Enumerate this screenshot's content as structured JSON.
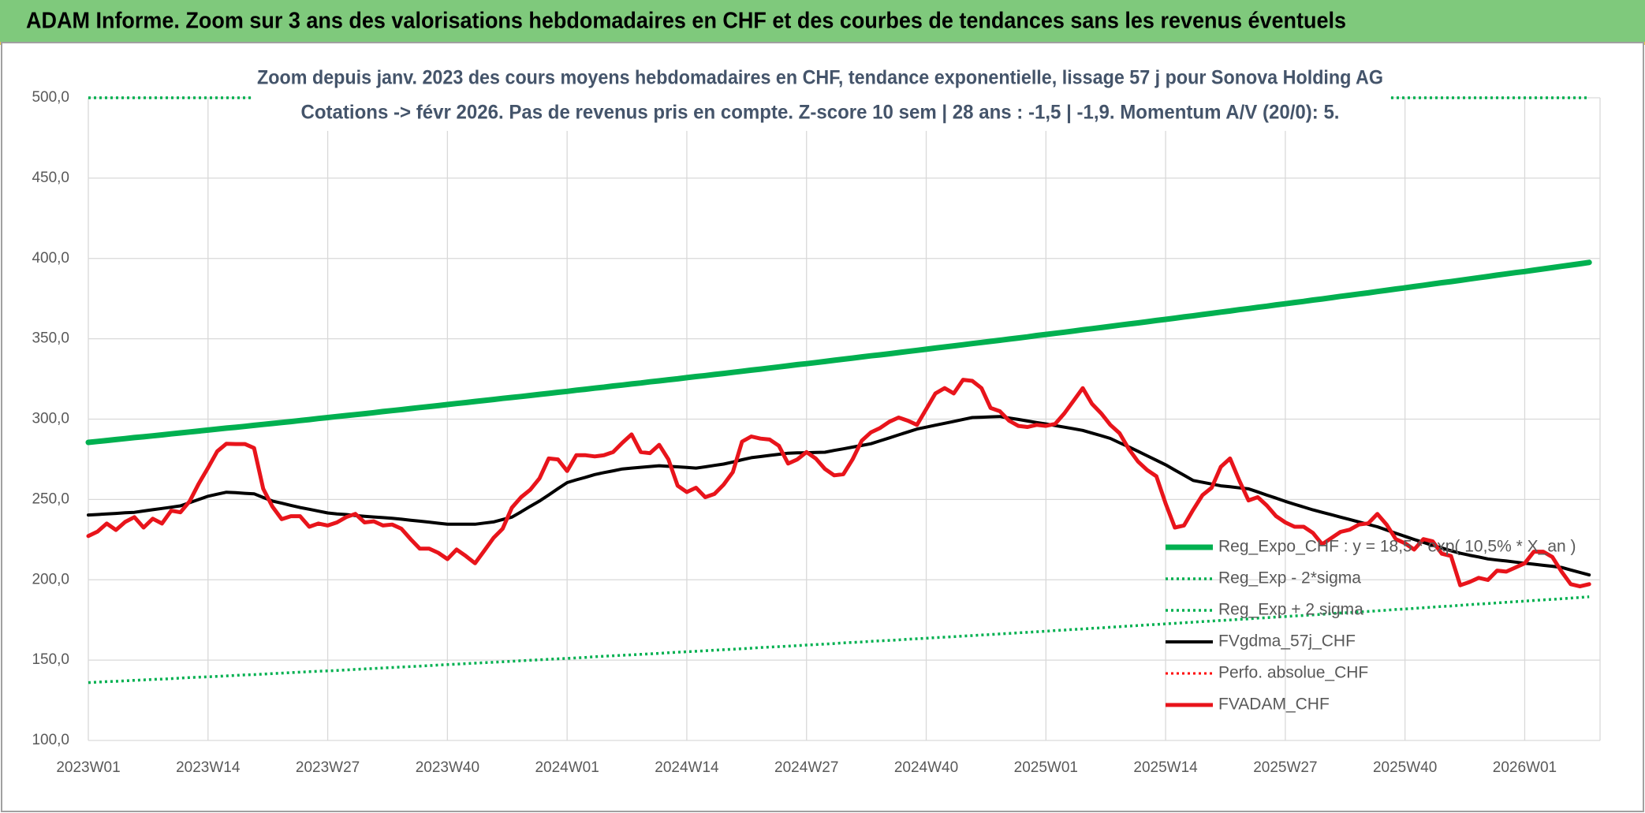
{
  "header": {
    "title": "ADAM Informe. Zoom sur 3 ans des valorisations hebdomadaires en CHF et des courbes de tendances sans les revenus éventuels"
  },
  "chart_data": {
    "type": "line",
    "title": "Zoom depuis janv. 2023 des cours moyens hebdomadaires en CHF, tendance exponentielle, lissage 57 j pour Sonova Holding AG",
    "subtitle": "Cotations -> févr 2026. Pas de revenus pris en compte. Z-score 10 sem | 28 ans : -1,5 | -1,9. Momentum A/V (20/0): 5.",
    "categories": [
      "2023W01",
      null,
      null,
      null,
      null,
      null,
      null,
      null,
      null,
      null,
      null,
      null,
      null,
      "2023W14",
      null,
      null,
      null,
      null,
      null,
      null,
      null,
      null,
      null,
      null,
      null,
      null,
      "2023W27",
      null,
      null,
      null,
      null,
      null,
      null,
      null,
      null,
      null,
      null,
      null,
      null,
      "2023W40",
      null,
      null,
      null,
      null,
      null,
      null,
      null,
      null,
      null,
      null,
      null,
      null,
      "2024W01",
      null,
      null,
      null,
      null,
      null,
      null,
      null,
      null,
      null,
      null,
      null,
      null,
      "2024W14",
      null,
      null,
      null,
      null,
      null,
      null,
      null,
      null,
      null,
      null,
      null,
      null,
      "2024W27",
      null,
      null,
      null,
      null,
      null,
      null,
      null,
      null,
      null,
      null,
      null,
      null,
      "2024W40",
      null,
      null,
      null,
      null,
      null,
      null,
      null,
      null,
      null,
      null,
      null,
      null,
      "2025W01",
      null,
      null,
      null,
      null,
      null,
      null,
      null,
      null,
      null,
      null,
      null,
      null,
      "2025W14",
      null,
      null,
      null,
      null,
      null,
      null,
      null,
      null,
      null,
      null,
      null,
      null,
      "2025W27",
      null,
      null,
      null,
      null,
      null,
      null,
      null,
      null,
      null,
      null,
      null,
      null,
      "2025W40",
      null,
      null,
      null,
      null,
      null,
      null,
      null,
      null,
      null,
      null,
      null,
      null,
      "2026W01",
      null,
      null,
      null,
      null,
      null,
      null,
      null
    ],
    "ylim": [
      100,
      500
    ],
    "yticks": [
      {
        "value": 100,
        "label": "100,0"
      },
      {
        "value": 150,
        "label": "150,0"
      },
      {
        "value": 200,
        "label": "200,0"
      },
      {
        "value": 250,
        "label": "250,0"
      },
      {
        "value": 300,
        "label": "300,0"
      },
      {
        "value": 350,
        "label": "350,0"
      },
      {
        "value": 400,
        "label": "400,0"
      },
      {
        "value": 450,
        "label": "450,0"
      },
      {
        "value": 500,
        "label": "500,0"
      }
    ],
    "grid": true,
    "legend": "right",
    "series": [
      {
        "name": "Reg_Expo_CHF : y = 18,5 * exp( 10,5% * X_an )",
        "color": "#00b050",
        "style": "solid",
        "values": [
          285.5,
          286.1,
          286.7,
          287.3,
          287.9,
          288.5,
          289.0,
          289.6,
          290.2,
          290.8,
          291.4,
          292.0,
          292.6,
          293.2,
          293.8,
          294.4,
          294.9,
          295.5,
          296.1,
          296.7,
          297.3,
          297.9,
          298.5,
          299.1,
          299.7,
          300.4,
          301.0,
          301.6,
          302.2,
          302.8,
          303.4,
          304.0,
          304.7,
          305.3,
          305.9,
          306.6,
          307.2,
          307.8,
          308.4,
          309.1,
          309.7,
          310.3,
          311.0,
          311.6,
          312.2,
          312.9,
          313.5,
          314.1,
          314.7,
          315.4,
          316.0,
          316.7,
          317.3,
          318.0,
          318.6,
          319.3,
          319.9,
          320.6,
          321.2,
          321.9,
          322.5,
          323.2,
          323.8,
          324.5,
          325.1,
          325.8,
          326.5,
          327.1,
          327.8,
          328.4,
          329.1,
          329.8,
          330.5,
          331.1,
          331.8,
          332.5,
          333.2,
          333.9,
          334.5,
          335.2,
          335.9,
          336.6,
          337.3,
          338.0,
          338.7,
          339.4,
          340.0,
          340.7,
          341.4,
          342.1,
          342.8,
          343.5,
          344.2,
          344.9,
          345.6,
          346.3,
          347.0,
          347.7,
          348.4,
          349.1,
          349.8,
          350.5,
          351.2,
          352.0,
          352.7,
          353.4,
          354.1,
          354.8,
          355.6,
          356.3,
          357.0,
          357.7,
          358.5,
          359.2,
          359.9,
          360.6,
          361.4,
          362.1,
          362.8,
          363.6,
          364.3,
          365.1,
          365.8,
          366.6,
          367.3,
          368.1,
          368.8,
          369.6,
          370.3,
          371.1,
          371.8,
          372.6,
          373.3,
          374.1,
          374.8,
          375.6,
          376.4,
          377.1,
          377.9,
          378.6,
          379.4,
          380.2,
          381.0,
          381.7,
          382.5,
          383.3,
          384.1,
          384.9,
          385.6,
          386.4,
          387.2,
          388.0,
          388.8,
          389.6,
          390.4,
          391.2,
          391.9,
          392.7,
          393.5,
          394.3,
          395.1,
          395.9,
          396.7,
          397.5
        ]
      },
      {
        "name": "Reg_Exp - 2*sigma",
        "color": "#00b050",
        "style": "dotted",
        "values": [
          136.0,
          136.3,
          136.6,
          136.8,
          137.1,
          137.4,
          137.7,
          138.0,
          138.2,
          138.5,
          138.8,
          139.1,
          139.4,
          139.6,
          139.9,
          140.2,
          140.5,
          140.8,
          141.0,
          141.3,
          141.6,
          141.9,
          142.2,
          142.5,
          142.8,
          143.1,
          143.3,
          143.6,
          143.9,
          144.2,
          144.5,
          144.8,
          145.1,
          145.4,
          145.7,
          146.0,
          146.3,
          146.6,
          146.9,
          147.2,
          147.5,
          147.8,
          148.1,
          148.4,
          148.7,
          149.0,
          149.3,
          149.6,
          149.9,
          150.2,
          150.5,
          150.8,
          151.1,
          151.4,
          151.7,
          152.1,
          152.4,
          152.7,
          153.0,
          153.3,
          153.6,
          153.9,
          154.2,
          154.6,
          154.9,
          155.2,
          155.5,
          155.8,
          156.2,
          156.5,
          156.8,
          157.1,
          157.4,
          157.8,
          158.1,
          158.4,
          158.7,
          159.0,
          159.4,
          159.7,
          160.0,
          160.3,
          160.7,
          161.0,
          161.3,
          161.7,
          162.0,
          162.3,
          162.6,
          163.0,
          163.3,
          163.6,
          164.0,
          164.3,
          164.6,
          165.0,
          165.3,
          165.6,
          165.9,
          166.3,
          166.6,
          167.0,
          167.3,
          167.7,
          168.0,
          168.4,
          168.7,
          169.1,
          169.4,
          169.8,
          170.1,
          170.5,
          170.8,
          171.2,
          171.5,
          171.9,
          172.2,
          172.6,
          172.9,
          173.3,
          173.6,
          174.0,
          174.3,
          174.7,
          175.0,
          175.4,
          175.7,
          176.1,
          176.4,
          176.8,
          177.1,
          177.5,
          177.8,
          178.2,
          178.5,
          178.9,
          179.3,
          179.6,
          180.0,
          180.3,
          180.7,
          181.1,
          181.5,
          181.8,
          182.2,
          182.6,
          183.0,
          183.4,
          183.7,
          184.1,
          184.5,
          184.9,
          185.2,
          185.6,
          186.0,
          186.4,
          186.7,
          187.1,
          187.5,
          187.8,
          188.2,
          188.6,
          189.0,
          189.4
        ]
      },
      {
        "name": "Reg_Exp + 2 sigma",
        "color": "#00b050",
        "style": "dotted",
        "values": [
          500,
          500,
          500,
          500,
          500,
          500,
          500,
          500,
          500,
          500,
          500,
          500,
          500,
          500,
          500,
          500,
          500,
          500,
          500,
          500,
          500,
          500,
          500,
          500,
          500,
          500,
          500,
          500,
          500,
          500,
          500,
          500,
          500,
          500,
          500,
          500,
          500,
          500,
          500,
          500,
          500,
          500,
          500,
          500,
          500,
          500,
          500,
          500,
          500,
          500,
          500,
          500,
          500,
          500,
          500,
          500,
          500,
          500,
          500,
          500,
          500,
          500,
          500,
          500,
          500,
          500,
          500,
          500,
          500,
          500,
          500,
          500,
          500,
          500,
          500,
          500,
          500,
          500,
          500,
          500,
          500,
          500,
          500,
          500,
          500,
          500,
          500,
          500,
          500,
          500,
          500,
          500,
          500,
          500,
          500,
          500,
          500,
          500,
          500,
          500,
          500,
          500,
          500,
          500,
          500,
          500,
          500,
          500,
          500,
          500,
          500,
          500,
          500,
          500,
          500,
          500,
          500,
          500,
          500,
          500,
          500,
          500,
          500,
          500,
          500,
          500,
          500,
          500,
          500,
          500,
          500,
          500,
          500,
          500,
          500,
          500,
          500,
          500,
          500,
          500,
          500,
          500,
          500,
          500,
          500,
          500,
          500,
          500,
          500,
          500,
          500,
          500,
          500,
          500,
          500,
          500,
          500,
          500,
          500,
          500,
          500,
          500,
          500,
          500
        ]
      },
      {
        "name": "FVgdma_57j_CHF",
        "color": "#000000",
        "style": "solid",
        "values": [
          240.3,
          240.6,
          241,
          241.3,
          241.7,
          242,
          242.8,
          243.6,
          244.4,
          245.2,
          246,
          248,
          250,
          252,
          253.3,
          254.5,
          254.2,
          253.8,
          253.5,
          251.2,
          249,
          247.7,
          246.3,
          245,
          243.9,
          242.7,
          241.6,
          241,
          240.6,
          240,
          239.5,
          239.1,
          238.7,
          238.3,
          237.7,
          237.1,
          236.5,
          235.9,
          235.2,
          234.6,
          234.6,
          234.6,
          234.6,
          235.3,
          236,
          237.5,
          239,
          242.3,
          245.7,
          249,
          252.8,
          256.7,
          260.5,
          262.2,
          263.8,
          265.5,
          266.7,
          267.8,
          269,
          269.5,
          270,
          270.5,
          271,
          270.6,
          270.3,
          269.9,
          269.5,
          270.3,
          271.2,
          272,
          273.3,
          274.7,
          276,
          276.7,
          277.4,
          278.1,
          278.8,
          279,
          279.1,
          279.3,
          279.4,
          280.5,
          281.5,
          282.6,
          283.6,
          284.7,
          286.5,
          288.3,
          290.2,
          292,
          293.8,
          295,
          296.2,
          297.4,
          298.6,
          299.8,
          301,
          301.2,
          301.4,
          301.6,
          300.7,
          299.8,
          298.8,
          297.9,
          297,
          296,
          295,
          294,
          293,
          291.3,
          289.7,
          288,
          285.3,
          282.7,
          280,
          277.2,
          274.4,
          271.6,
          268.3,
          265.1,
          261.8,
          260.7,
          259.6,
          258.5,
          257.9,
          257.2,
          256.6,
          254.7,
          252.7,
          250.8,
          248.8,
          247,
          245.3,
          243.5,
          242,
          240.5,
          239,
          237.5,
          236,
          234.5,
          233,
          231,
          229,
          227,
          225.1,
          223.3,
          221.4,
          219.8,
          218.1,
          216.5,
          215.3,
          214.2,
          213,
          212.3,
          211.7,
          211,
          210.3,
          209.7,
          209,
          208.4,
          207.7,
          206.1,
          204.6,
          203
        ]
      },
      {
        "name": "Perfo. absolue_CHF",
        "color": "#ff0000",
        "style": "dotted"
      },
      {
        "name": "FVADAM_CHF",
        "color": "#e8141b",
        "style": "solid",
        "values": [
          227.2,
          230,
          235,
          231,
          236,
          239,
          232.5,
          238,
          235,
          243,
          242,
          248.8,
          259.9,
          269.7,
          280,
          284.7,
          284.5,
          284.5,
          282,
          256.6,
          245.5,
          237.7,
          239.6,
          239.6,
          233,
          235,
          233.8,
          235.7,
          239,
          241,
          235.7,
          236.4,
          233.8,
          234.4,
          231.8,
          225.3,
          219.4,
          219.4,
          216.8,
          212.9,
          218.8,
          214.8,
          210.3,
          218.1,
          226,
          231.8,
          244.9,
          251.4,
          256,
          263.1,
          275.5,
          274.9,
          267.7,
          277.5,
          277.5,
          276.8,
          277.5,
          279.5,
          285.3,
          290.5,
          279.5,
          278.8,
          284,
          274.9,
          258.6,
          254.6,
          257.3,
          251.4,
          253.4,
          259.2,
          267,
          286,
          289.2,
          287.9,
          287.3,
          283.4,
          272.3,
          274.9,
          279.5,
          275.5,
          269,
          265,
          265.7,
          274.9,
          286.6,
          291.8,
          294.5,
          298.4,
          301,
          299,
          296.4,
          306.2,
          316,
          319.3,
          316,
          324.5,
          323.8,
          319.3,
          306.9,
          304.9,
          299,
          295.8,
          295.1,
          296.4,
          295.8,
          297,
          303.6,
          311.4,
          319.3,
          309.5,
          303.6,
          296.4,
          291.2,
          281.4,
          273.6,
          268.3,
          264.4,
          247.5,
          232.5,
          233.8,
          243.6,
          252.7,
          257.3,
          270.3,
          275.5,
          261.8,
          249.4,
          251.4,
          246.2,
          239.6,
          235.7,
          233,
          233,
          229.2,
          222.1,
          226,
          229.8,
          231.2,
          234.4,
          235.1,
          241,
          234.4,
          225.3,
          222.7,
          218.8,
          225.3,
          224,
          216.2,
          214.8,
          196.6,
          198.6,
          201.2,
          199.9,
          205.7,
          205.1,
          207.7,
          210.3,
          217.5,
          217.5,
          214.2,
          205.1,
          197.3,
          195.9,
          197.3
        ]
      }
    ]
  }
}
